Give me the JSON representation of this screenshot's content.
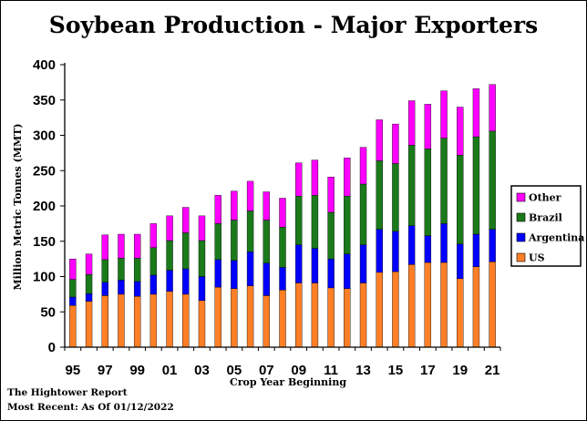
{
  "chart_data": {
    "type": "bar",
    "stacked": true,
    "title": "Soybean Production - Major Exporters",
    "xlabel": "Crop Year Beginning",
    "ylabel": "Million Metric Tonnes  (MMT)",
    "ylim": [
      0,
      400
    ],
    "yticks": [
      "0",
      "50",
      "100",
      "150",
      "200",
      "250",
      "300",
      "350",
      "400"
    ],
    "grid": false,
    "legend_position": "right",
    "categories": [
      "95",
      "96",
      "97",
      "98",
      "99",
      "00",
      "01",
      "02",
      "03",
      "04",
      "05",
      "06",
      "07",
      "08",
      "09",
      "10",
      "11",
      "12",
      "13",
      "14",
      "15",
      "16",
      "17",
      "18",
      "19",
      "20",
      "21"
    ],
    "xtick_labels": [
      "95",
      "",
      "97",
      "",
      "99",
      "",
      "01",
      "",
      "03",
      "",
      "05",
      "",
      "07",
      "",
      "09",
      "",
      "11",
      "",
      "13",
      "",
      "15",
      "",
      "17",
      "",
      "19",
      "",
      "21"
    ],
    "series": [
      {
        "name": "US",
        "color": "#ff7f27",
        "values": [
          59,
          65,
          73,
          75,
          72,
          75,
          79,
          75,
          66,
          85,
          83,
          87,
          73,
          81,
          91,
          91,
          84,
          83,
          91,
          106,
          107,
          117,
          120,
          120,
          97,
          114,
          121
        ]
      },
      {
        "name": "Argentina",
        "color": "#0000ff",
        "values": [
          12,
          11,
          19,
          20,
          21,
          27,
          30,
          36,
          34,
          39,
          40,
          48,
          46,
          32,
          54,
          49,
          41,
          49,
          54,
          61,
          57,
          55,
          38,
          55,
          49,
          46,
          46
        ]
      },
      {
        "name": "Brazil",
        "color": "#1a7a1a",
        "values": [
          25,
          27,
          32,
          31,
          33,
          39,
          42,
          51,
          51,
          51,
          57,
          58,
          61,
          57,
          69,
          75,
          66,
          82,
          86,
          97,
          96,
          114,
          123,
          121,
          126,
          138,
          139
        ]
      },
      {
        "name": "Other",
        "color": "#ff00ff",
        "values": [
          29,
          29,
          35,
          34,
          34,
          34,
          35,
          36,
          35,
          40,
          41,
          42,
          40,
          41,
          47,
          50,
          50,
          54,
          52,
          58,
          56,
          63,
          63,
          67,
          68,
          68,
          66
        ]
      }
    ]
  },
  "footer": {
    "source": "The Hightower Report",
    "recent": "Most Recent: As Of 01/12/2022"
  }
}
